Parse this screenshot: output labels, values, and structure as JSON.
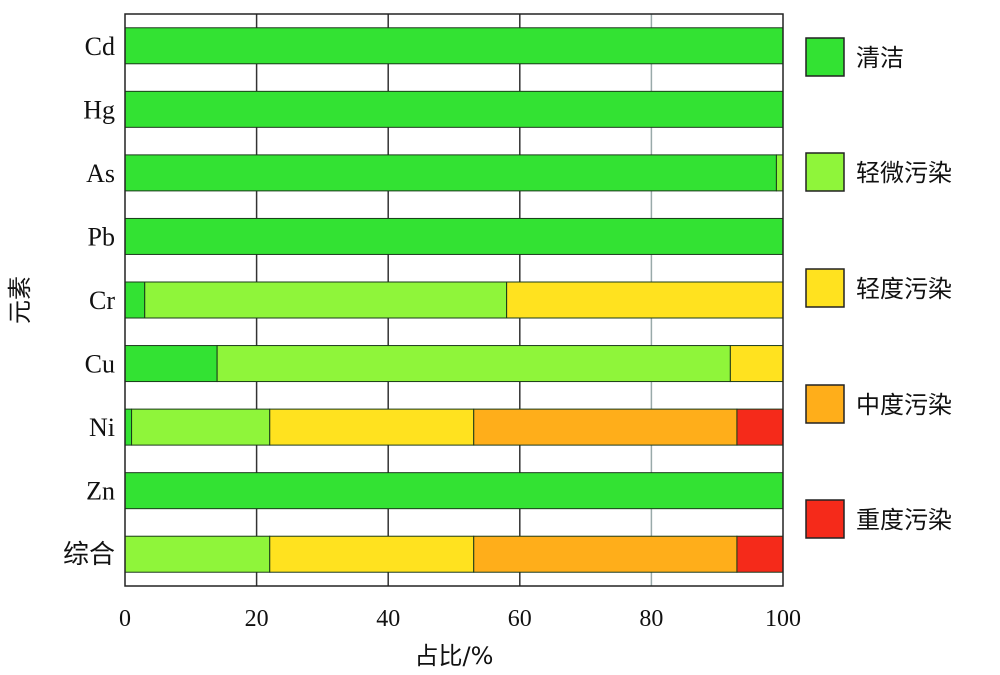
{
  "chart_data": {
    "type": "bar",
    "orientation": "horizontal",
    "stacked": true,
    "title": "",
    "xlabel": "占比/%",
    "ylabel": "元素",
    "xlim": [
      0,
      100
    ],
    "xticks": [
      "0",
      "20",
      "40",
      "60",
      "80",
      "100"
    ],
    "grid": "vertical gridlines at 20, 40, 60, 80",
    "legend_position": "right",
    "categories": [
      "Cd",
      "Hg",
      "As",
      "Pb",
      "Cr",
      "Cu",
      "Ni",
      "Zn",
      "综合"
    ],
    "series": [
      {
        "name": "清洁",
        "color": "#33e233",
        "values": [
          100,
          100,
          99,
          100,
          3,
          14,
          1,
          100,
          0
        ]
      },
      {
        "name": "轻微污染",
        "color": "#8ff53a",
        "values": [
          0,
          0,
          1,
          0,
          55,
          78,
          21,
          0,
          22
        ]
      },
      {
        "name": "轻度污染",
        "color": "#ffe21f",
        "values": [
          0,
          0,
          0,
          0,
          42,
          8,
          31,
          0,
          31
        ]
      },
      {
        "name": "中度污染",
        "color": "#ffae1a",
        "values": [
          0,
          0,
          0,
          0,
          0,
          0,
          40,
          0,
          40
        ]
      },
      {
        "name": "重度污染",
        "color": "#f52a1a",
        "values": [
          0,
          0,
          0,
          0,
          0,
          0,
          7,
          0,
          7
        ]
      }
    ]
  }
}
